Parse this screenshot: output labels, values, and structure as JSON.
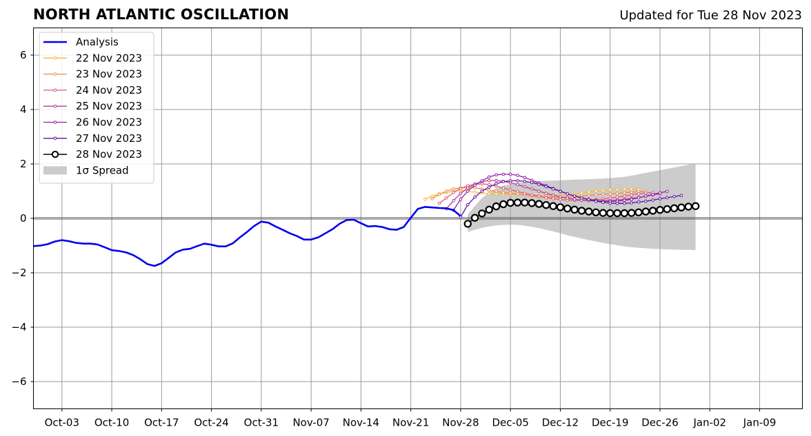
{
  "header": {
    "title": "NORTH ATLANTIC OSCILLATION",
    "updated": "Updated for Tue 28 Nov 2023"
  },
  "chart_data": {
    "type": "line",
    "title": "NORTH ATLANTIC OSCILLATION",
    "subtitle": "Updated for Tue 28 Nov 2023",
    "xlabel": "",
    "ylabel": "",
    "x_axis": "date",
    "xlim": [
      "2023-09-29",
      "2024-01-15"
    ],
    "ylim": [
      -7,
      7
    ],
    "x_ticks": [
      {
        "date": "2023-10-03",
        "label": "Oct-03"
      },
      {
        "date": "2023-10-10",
        "label": "Oct-10"
      },
      {
        "date": "2023-10-17",
        "label": "Oct-17"
      },
      {
        "date": "2023-10-24",
        "label": "Oct-24"
      },
      {
        "date": "2023-10-31",
        "label": "Oct-31"
      },
      {
        "date": "2023-11-07",
        "label": "Nov-07"
      },
      {
        "date": "2023-11-14",
        "label": "Nov-14"
      },
      {
        "date": "2023-11-21",
        "label": "Nov-21"
      },
      {
        "date": "2023-11-28",
        "label": "Nov-28"
      },
      {
        "date": "2023-12-05",
        "label": "Dec-05"
      },
      {
        "date": "2023-12-12",
        "label": "Dec-12"
      },
      {
        "date": "2023-12-19",
        "label": "Dec-19"
      },
      {
        "date": "2023-12-26",
        "label": "Dec-26"
      },
      {
        "date": "2024-01-02",
        "label": "Jan-02"
      },
      {
        "date": "2024-01-09",
        "label": "Jan-09"
      }
    ],
    "y_ticks": [
      {
        "value": 6,
        "label": "6"
      },
      {
        "value": 4,
        "label": "4"
      },
      {
        "value": 2,
        "label": "2"
      },
      {
        "value": 0,
        "label": "0"
      },
      {
        "value": -2,
        "label": "−2"
      },
      {
        "value": -4,
        "label": "−4"
      },
      {
        "value": -6,
        "label": "−6"
      }
    ],
    "grid": true,
    "zero_line": true,
    "legend_position": "top-left",
    "analysis": {
      "name": "Analysis",
      "color": "#0000ee",
      "points": [
        [
          "2023-09-29",
          -1.02
        ],
        [
          "2023-09-30",
          -1.0
        ],
        [
          "2023-10-01",
          -0.95
        ],
        [
          "2023-10-02",
          -0.85
        ],
        [
          "2023-10-03",
          -0.8
        ],
        [
          "2023-10-04",
          -0.84
        ],
        [
          "2023-10-05",
          -0.9
        ],
        [
          "2023-10-06",
          -0.93
        ],
        [
          "2023-10-07",
          -0.93
        ],
        [
          "2023-10-08",
          -0.96
        ],
        [
          "2023-10-09",
          -1.06
        ],
        [
          "2023-10-10",
          -1.17
        ],
        [
          "2023-10-11",
          -1.2
        ],
        [
          "2023-10-12",
          -1.25
        ],
        [
          "2023-10-13",
          -1.35
        ],
        [
          "2023-10-14",
          -1.5
        ],
        [
          "2023-10-15",
          -1.68
        ],
        [
          "2023-10-16",
          -1.75
        ],
        [
          "2023-10-17",
          -1.65
        ],
        [
          "2023-10-18",
          -1.45
        ],
        [
          "2023-10-19",
          -1.25
        ],
        [
          "2023-10-20",
          -1.15
        ],
        [
          "2023-10-21",
          -1.12
        ],
        [
          "2023-10-22",
          -1.02
        ],
        [
          "2023-10-23",
          -0.93
        ],
        [
          "2023-10-24",
          -0.97
        ],
        [
          "2023-10-25",
          -1.03
        ],
        [
          "2023-10-26",
          -1.03
        ],
        [
          "2023-10-27",
          -0.92
        ],
        [
          "2023-10-28",
          -0.7
        ],
        [
          "2023-10-29",
          -0.5
        ],
        [
          "2023-10-30",
          -0.28
        ],
        [
          "2023-10-31",
          -0.12
        ],
        [
          "2023-11-01",
          -0.16
        ],
        [
          "2023-11-02",
          -0.3
        ],
        [
          "2023-11-03",
          -0.42
        ],
        [
          "2023-11-04",
          -0.55
        ],
        [
          "2023-11-05",
          -0.65
        ],
        [
          "2023-11-06",
          -0.78
        ],
        [
          "2023-11-07",
          -0.78
        ],
        [
          "2023-11-08",
          -0.7
        ],
        [
          "2023-11-09",
          -0.55
        ],
        [
          "2023-11-10",
          -0.4
        ],
        [
          "2023-11-11",
          -0.2
        ],
        [
          "2023-11-12",
          -0.06
        ],
        [
          "2023-11-13",
          -0.05
        ],
        [
          "2023-11-14",
          -0.18
        ],
        [
          "2023-11-15",
          -0.3
        ],
        [
          "2023-11-16",
          -0.28
        ],
        [
          "2023-11-17",
          -0.32
        ],
        [
          "2023-11-18",
          -0.4
        ],
        [
          "2023-11-19",
          -0.42
        ],
        [
          "2023-11-20",
          -0.32
        ],
        [
          "2023-11-21",
          0.02
        ],
        [
          "2023-11-22",
          0.35
        ],
        [
          "2023-11-23",
          0.42
        ],
        [
          "2023-11-24",
          0.4
        ],
        [
          "2023-11-25",
          0.38
        ],
        [
          "2023-11-26",
          0.37
        ],
        [
          "2023-11-27",
          0.3
        ],
        [
          "2023-11-28",
          0.08
        ]
      ]
    },
    "forecasts": [
      {
        "name": "22 Nov 2023",
        "color": "#f6b93b",
        "start": "2023-11-23",
        "values": [
          0.7,
          0.82,
          0.9,
          0.95,
          1.0,
          1.02,
          1.0,
          0.96,
          0.93,
          0.91,
          0.9,
          0.89,
          0.88,
          0.87,
          0.86,
          0.85,
          0.84,
          0.83,
          0.83,
          0.84,
          0.86,
          0.89,
          0.93,
          0.97,
          1.0,
          1.03,
          1.05,
          1.06,
          1.07,
          1.07,
          1.06
        ]
      },
      {
        "name": "23 Nov 2023",
        "color": "#f08a4b",
        "start": "2023-11-24",
        "values": [
          0.72,
          0.88,
          1.0,
          1.08,
          1.12,
          1.13,
          1.12,
          1.08,
          1.03,
          0.99,
          0.95,
          0.92,
          0.89,
          0.86,
          0.83,
          0.8,
          0.78,
          0.77,
          0.77,
          0.78,
          0.8,
          0.82,
          0.84,
          0.86,
          0.88,
          0.9,
          0.92,
          0.94,
          0.96,
          0.98,
          1.0
        ]
      },
      {
        "name": "24 Nov 2023",
        "color": "#dd5a6e",
        "start": "2023-11-25",
        "values": [
          0.55,
          0.75,
          0.95,
          1.1,
          1.2,
          1.25,
          1.27,
          1.24,
          1.18,
          1.11,
          1.05,
          0.98,
          0.92,
          0.86,
          0.81,
          0.76,
          0.72,
          0.69,
          0.67,
          0.66,
          0.66,
          0.67,
          0.69,
          0.71,
          0.74,
          0.78,
          0.82,
          0.86,
          0.9,
          0.93,
          0.95
        ]
      },
      {
        "name": "25 Nov 2023",
        "color": "#b8378f",
        "start": "2023-11-26",
        "values": [
          0.35,
          0.65,
          0.92,
          1.12,
          1.26,
          1.35,
          1.39,
          1.39,
          1.36,
          1.31,
          1.24,
          1.16,
          1.08,
          1.0,
          0.92,
          0.85,
          0.79,
          0.74,
          0.7,
          0.67,
          0.65,
          0.64,
          0.64,
          0.65,
          0.67,
          0.7,
          0.73,
          0.77,
          0.81,
          0.86,
          0.9
        ]
      },
      {
        "name": "26 Nov 2023",
        "color": "#8e1ea8",
        "start": "2023-11-27",
        "values": [
          0.3,
          0.7,
          1.0,
          1.22,
          1.38,
          1.52,
          1.6,
          1.62,
          1.62,
          1.58,
          1.5,
          1.4,
          1.3,
          1.2,
          1.1,
          1.0,
          0.9,
          0.82,
          0.75,
          0.7,
          0.66,
          0.63,
          0.62,
          0.63,
          0.66,
          0.7,
          0.76,
          0.82,
          0.88,
          0.94,
          0.99
        ]
      },
      {
        "name": "27 Nov 2023",
        "color": "#5d10a0",
        "start": "2023-11-28",
        "values": [
          0.05,
          0.5,
          0.78,
          1.0,
          1.15,
          1.27,
          1.35,
          1.38,
          1.38,
          1.36,
          1.32,
          1.25,
          1.17,
          1.08,
          0.99,
          0.9,
          0.82,
          0.75,
          0.69,
          0.63,
          0.59,
          0.56,
          0.55,
          0.55,
          0.57,
          0.6,
          0.63,
          0.67,
          0.72,
          0.76,
          0.8,
          0.84
        ]
      }
    ],
    "ensemble": {
      "name": "28 Nov 2023",
      "color": "#000000",
      "start": "2023-11-29",
      "values": [
        -0.2,
        0.02,
        0.18,
        0.32,
        0.44,
        0.52,
        0.57,
        0.58,
        0.58,
        0.56,
        0.53,
        0.49,
        0.45,
        0.41,
        0.36,
        0.32,
        0.28,
        0.25,
        0.22,
        0.2,
        0.19,
        0.19,
        0.19,
        0.2,
        0.22,
        0.25,
        0.28,
        0.31,
        0.34,
        0.37,
        0.4,
        0.43,
        0.45
      ]
    },
    "spread": {
      "name": "1σ Spread",
      "color": "#cccccc",
      "start": "2023-11-29",
      "upper": [
        0.15,
        0.45,
        0.75,
        0.95,
        1.1,
        1.2,
        1.26,
        1.3,
        1.33,
        1.35,
        1.37,
        1.38,
        1.39,
        1.4,
        1.41,
        1.42,
        1.43,
        1.44,
        1.45,
        1.46,
        1.48,
        1.5,
        1.53,
        1.57,
        1.62,
        1.67,
        1.72,
        1.77,
        1.82,
        1.87,
        1.92,
        1.97,
        2.02
      ],
      "lower": [
        -0.5,
        -0.42,
        -0.35,
        -0.3,
        -0.26,
        -0.24,
        -0.23,
        -0.24,
        -0.27,
        -0.31,
        -0.36,
        -0.42,
        -0.48,
        -0.55,
        -0.62,
        -0.68,
        -0.74,
        -0.8,
        -0.85,
        -0.9,
        -0.95,
        -0.99,
        -1.03,
        -1.06,
        -1.08,
        -1.1,
        -1.12,
        -1.13,
        -1.14,
        -1.15,
        -1.16,
        -1.16,
        -1.17
      ]
    }
  }
}
